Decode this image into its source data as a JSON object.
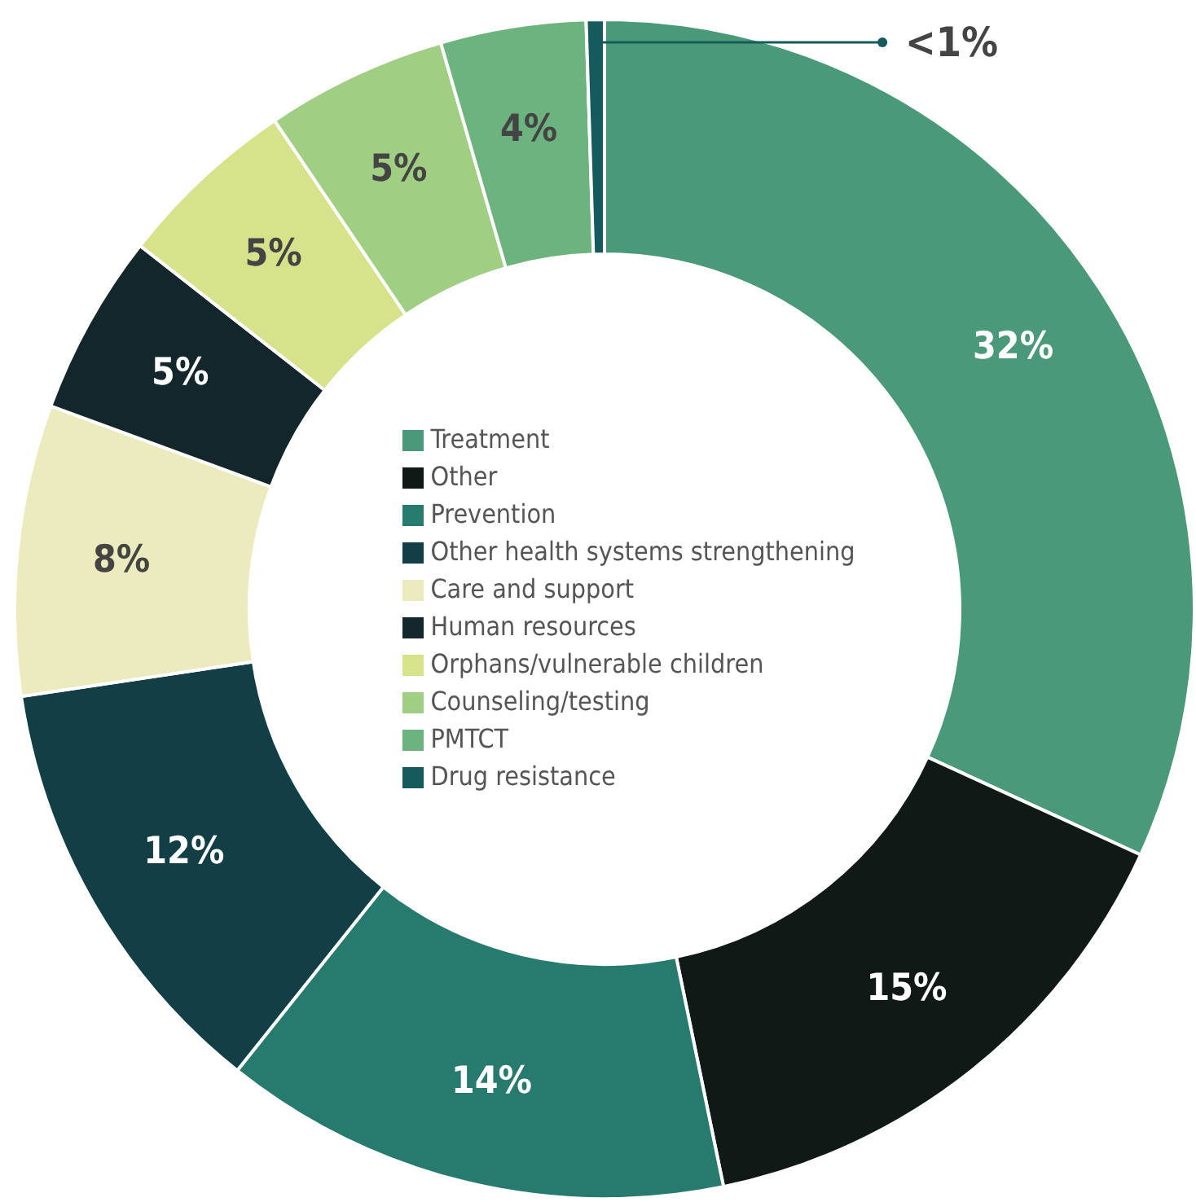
{
  "chart_data": {
    "type": "donut",
    "categories": [
      "Treatment",
      "Other",
      "Prevention",
      "Other health systems strengthening",
      "Care and support",
      "Human resources",
      "Orphans/vulnerable children",
      "Counseling/testing",
      "PMTCT",
      "Drug resistance"
    ],
    "values": [
      32,
      15,
      14,
      12,
      8,
      5,
      5,
      5,
      4,
      0.5
    ],
    "value_labels": [
      "32%",
      "15%",
      "14%",
      "12%",
      "8%",
      "5%",
      "5%",
      "5%",
      "4%",
      "<1%"
    ],
    "colors": [
      "#4a9a7a",
      "#101915",
      "#267a6e",
      "#113f45",
      "#ecebbd",
      "#12262b",
      "#d6e38a",
      "#a0cf84",
      "#6db37f",
      "#155a5c"
    ],
    "legend": "center"
  }
}
